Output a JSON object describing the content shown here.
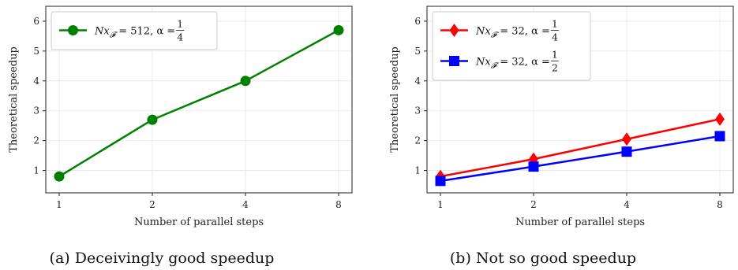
{
  "chart_data": [
    {
      "type": "line",
      "caption": "(a) Deceivingly good speedup",
      "xlabel": "Number of parallel steps",
      "ylabel": "Theoretical speedup",
      "x_categories": [
        "1",
        "2",
        "4",
        "8"
      ],
      "yticks": [
        "1",
        "2",
        "3",
        "4",
        "5",
        "6"
      ],
      "ylim": [
        0.25,
        6.5
      ],
      "grid": true,
      "legend_position": "top-left",
      "series": [
        {
          "legend_prefix": "Nx",
          "legend_subscript": "𝓕",
          "legend_eq": " = 512, α = ",
          "frac_num": "1",
          "frac_den": "4",
          "color": "#008000",
          "marker": "circle",
          "values": [
            0.8,
            2.7,
            4.0,
            5.7
          ]
        }
      ]
    },
    {
      "type": "line",
      "caption": "(b) Not so good speedup",
      "xlabel": "Number of parallel steps",
      "ylabel": "Theoretical speedup",
      "x_categories": [
        "1",
        "2",
        "4",
        "8"
      ],
      "yticks": [
        "1",
        "2",
        "3",
        "4",
        "5",
        "6"
      ],
      "ylim": [
        0.25,
        6.5
      ],
      "grid": true,
      "legend_position": "top-left",
      "series": [
        {
          "legend_prefix": "Nx",
          "legend_subscript": "𝓕",
          "legend_eq": " = 32, α = ",
          "frac_num": "1",
          "frac_den": "4",
          "color": "#ff0000",
          "marker": "diamond",
          "values": [
            0.8,
            1.38,
            2.05,
            2.72
          ]
        },
        {
          "legend_prefix": "Nx",
          "legend_subscript": "𝓕",
          "legend_eq": " = 32, α = ",
          "frac_num": "1",
          "frac_den": "2",
          "color": "#0000ff",
          "marker": "square",
          "values": [
            0.65,
            1.13,
            1.63,
            2.15
          ]
        }
      ]
    }
  ]
}
